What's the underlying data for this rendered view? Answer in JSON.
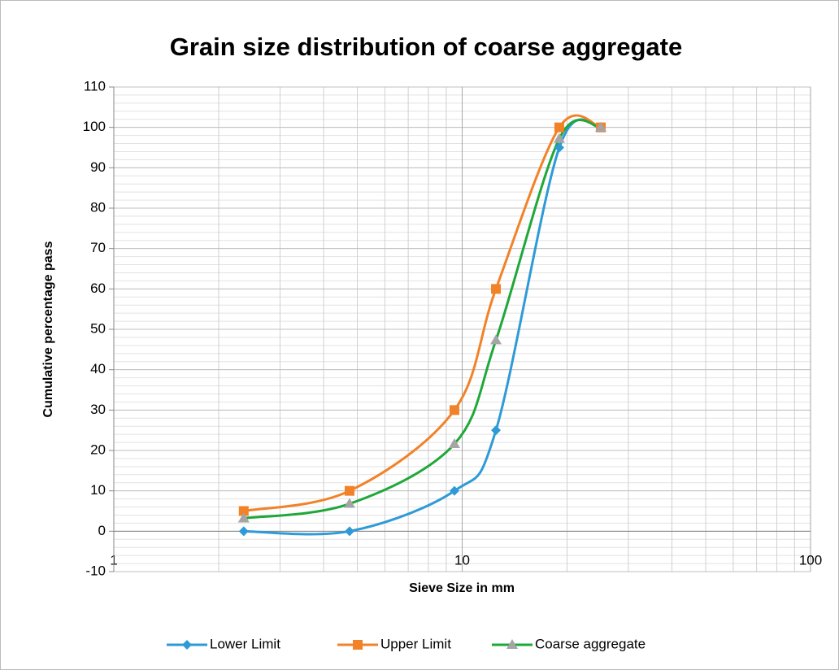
{
  "chart_data": {
    "type": "line",
    "title": "Grain size distribution of coarse aggregate",
    "x_label": "Sieve Size in mm",
    "y_label": "Cumulative percentage pass",
    "x": [
      2.36,
      4.75,
      9.5,
      12.5,
      19,
      25
    ],
    "series": [
      {
        "name": "Lower Limit",
        "color": "#2e9ad6",
        "marker": "diamond",
        "values": [
          0,
          0,
          10,
          25,
          95,
          100
        ]
      },
      {
        "name": "Upper Limit",
        "color": "#f28228",
        "marker": "square",
        "values": [
          5,
          10,
          30,
          60,
          100,
          100
        ]
      },
      {
        "name": "Coarse aggregate",
        "color": "#1fa83a",
        "marker": "triangle",
        "marker_color": "#a5a5a5",
        "values": [
          3.2,
          6.8,
          21.6,
          47.3,
          97.2,
          100
        ]
      }
    ],
    "xlim": [
      1,
      100
    ],
    "xticks": [
      1,
      10,
      100
    ],
    "xscale": "log",
    "ylim": [
      -10,
      110
    ],
    "yticks": [
      -10,
      0,
      10,
      20,
      30,
      40,
      50,
      60,
      70,
      80,
      90,
      100,
      110
    ],
    "grid": true,
    "minor_grid": true,
    "smooth": true,
    "legend": "bottom"
  }
}
